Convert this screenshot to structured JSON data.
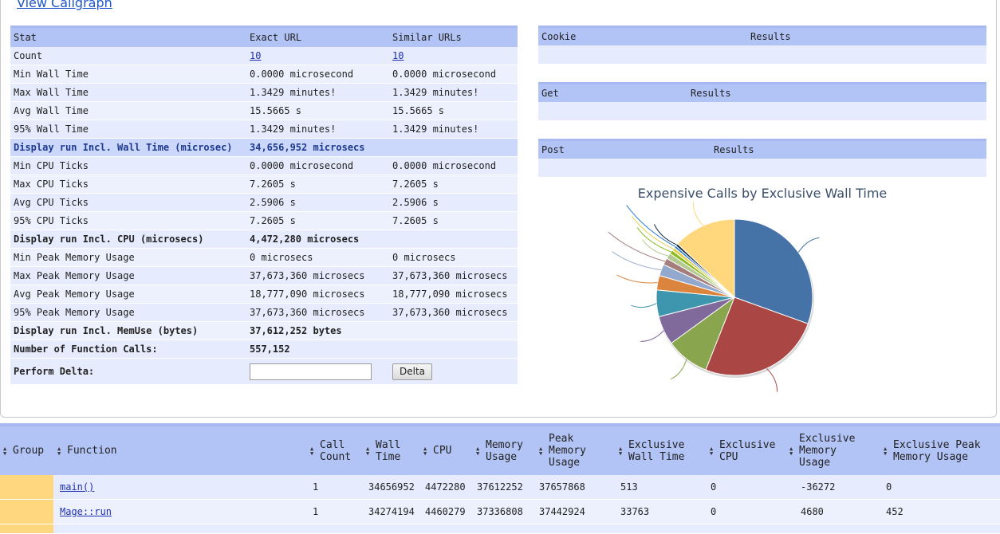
{
  "callgraph_link": "View Callgraph",
  "stats": {
    "headers": [
      "Stat",
      "Exact URL",
      "Similar URLs"
    ],
    "rows": [
      {
        "label": "Count",
        "exact": "10",
        "similar": "10",
        "link": true
      },
      {
        "label": "Min Wall Time",
        "exact": "0.0000 microsecond",
        "similar": "0.0000 microsecond"
      },
      {
        "label": "Max Wall Time",
        "exact": "1.3429 minutes!",
        "similar": "1.3429 minutes!"
      },
      {
        "label": "Avg Wall Time",
        "exact": "15.5665 s",
        "similar": "15.5665 s"
      },
      {
        "label": "95% Wall Time",
        "exact": "1.3429 minutes!",
        "similar": "1.3429 minutes!"
      },
      {
        "label": "Display run Incl. Wall Time (microsec)",
        "exact": "34,656,952 microsecs",
        "similar": "",
        "highlight": true
      },
      {
        "label": "Min CPU Ticks",
        "exact": "0.0000 microsecond",
        "similar": "0.0000 microsecond"
      },
      {
        "label": "Max CPU Ticks",
        "exact": "7.2605 s",
        "similar": "7.2605 s"
      },
      {
        "label": "Avg CPU Ticks",
        "exact": "2.5906 s",
        "similar": "2.5906 s"
      },
      {
        "label": "95% CPU Ticks",
        "exact": "7.2605 s",
        "similar": "7.2605 s"
      },
      {
        "label": "Display run Incl. CPU (microsecs)",
        "exact": "4,472,280 microsecs",
        "similar": "",
        "bold": true
      },
      {
        "label": "Min Peak Memory Usage",
        "exact": "0 microsecs",
        "similar": "0 microsecs"
      },
      {
        "label": "Max Peak Memory Usage",
        "exact": "37,673,360 microsecs",
        "similar": "37,673,360 microsecs"
      },
      {
        "label": "Avg Peak Memory Usage",
        "exact": "18,777,090 microsecs",
        "similar": "18,777,090 microsecs"
      },
      {
        "label": "95% Peak Memory Usage",
        "exact": "37,673,360 microsecs",
        "similar": "37,673,360 microsecs"
      },
      {
        "label": "Display run Incl. MemUse (bytes)",
        "exact": "37,612,252 bytes",
        "similar": "",
        "bold": true
      },
      {
        "label": "Number of Function Calls:",
        "exact": "557,152",
        "similar": "",
        "bold": true
      }
    ],
    "delta_label": "Perform Delta:",
    "delta_value": "",
    "delta_button": "Delta"
  },
  "cookie": {
    "col1": "Cookie",
    "col2": "Results"
  },
  "get": {
    "col1": "Get",
    "col2": "Results"
  },
  "post": {
    "col1": "Post",
    "col2": "Results"
  },
  "chart": {
    "title": "Expensive Calls by Exclusive Wall Time",
    "slices": [
      {
        "value": 30.5,
        "color": "#4572a7"
      },
      {
        "value": 25.5,
        "color": "#aa4643"
      },
      {
        "value": 9.0,
        "color": "#89a54e"
      },
      {
        "value": 6.0,
        "color": "#80699b"
      },
      {
        "value": 5.5,
        "color": "#3d96ae"
      },
      {
        "value": 3.0,
        "color": "#db843d"
      },
      {
        "value": 2.4,
        "color": "#92a8cd"
      },
      {
        "value": 1.4,
        "color": "#a47d7c"
      },
      {
        "value": 1.2,
        "color": "#b5ca92"
      },
      {
        "value": 0.8,
        "color": "#8bbc21"
      },
      {
        "value": 0.7,
        "color": "#e4d354"
      },
      {
        "value": 0.5,
        "color": "#2f7ed8"
      },
      {
        "value": 0.5,
        "color": "#0d233a"
      },
      {
        "value": 13.0,
        "color": "#ffd87e"
      }
    ]
  },
  "functions": {
    "headers": [
      {
        "label": "Group",
        "lines": [
          "Group"
        ]
      },
      {
        "label": "Function",
        "lines": [
          "Function"
        ]
      },
      {
        "label": "Call Count",
        "lines": [
          "Call",
          "Count"
        ]
      },
      {
        "label": "Wall Time",
        "lines": [
          "Wall",
          "Time"
        ]
      },
      {
        "label": "CPU",
        "lines": [
          "CPU"
        ]
      },
      {
        "label": "Memory Usage",
        "lines": [
          "Memory",
          "Usage"
        ]
      },
      {
        "label": "Peak Memory Usage",
        "lines": [
          "Peak",
          "Memory",
          "Usage"
        ]
      },
      {
        "label": "Exclusive Wall Time",
        "lines": [
          "Exclusive",
          "Wall Time"
        ]
      },
      {
        "label": "Exclusive CPU",
        "lines": [
          "Exclusive",
          "CPU"
        ]
      },
      {
        "label": "Exclusive Memory Usage",
        "lines": [
          "Exclusive",
          "Memory",
          "Usage"
        ]
      },
      {
        "label": "Exclusive Peak Memory Usage",
        "lines": [
          "Exclusive Peak",
          "Memory Usage"
        ]
      }
    ],
    "rows": [
      {
        "function": "main()",
        "call_count": "1",
        "wall_time": "34656952",
        "cpu": "4472280",
        "memory": "37612252",
        "peak_memory": "37657868",
        "excl_wall": "513",
        "excl_cpu": "0",
        "excl_memory": "-36272",
        "excl_peak": "0"
      },
      {
        "function": "Mage::run",
        "call_count": "1",
        "wall_time": "34274194",
        "cpu": "4460279",
        "memory": "37336808",
        "peak_memory": "37442924",
        "excl_wall": "33763",
        "excl_cpu": "0",
        "excl_memory": "4680",
        "excl_peak": "452"
      }
    ]
  }
}
